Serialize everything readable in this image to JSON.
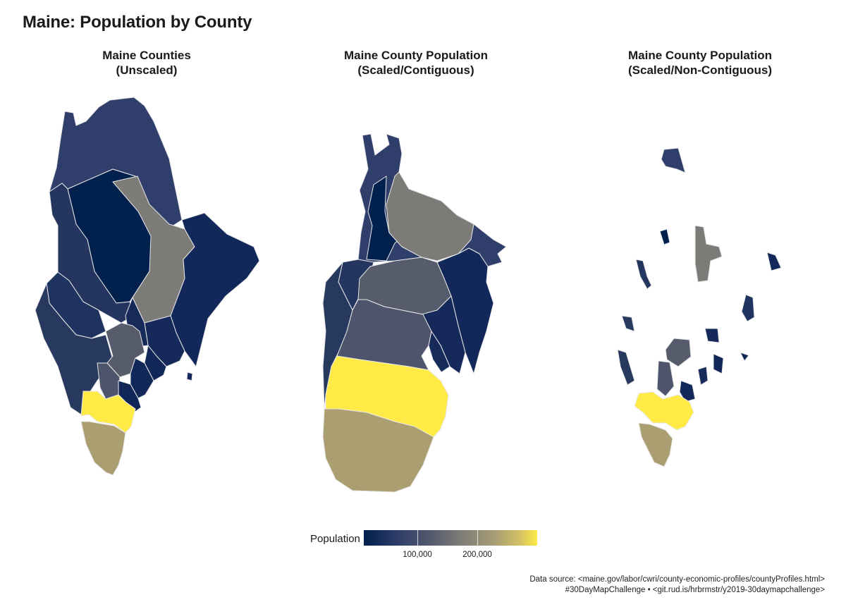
{
  "title": "Maine: Population by County",
  "panels": [
    {
      "line1": "Maine Counties",
      "line2": "(Unscaled)"
    },
    {
      "line1": "Maine County Population",
      "line2": "(Scaled/Contiguous)"
    },
    {
      "line1": "Maine County Population",
      "line2": "(Scaled/Non-Contiguous)"
    }
  ],
  "legend": {
    "title": "Population",
    "ticks": [
      "100,000",
      "200,000"
    ],
    "colors": {
      "low": "#00204d",
      "mid": "#7c7b78",
      "high": "#ffea46"
    }
  },
  "caption": {
    "line1": "Data source: <maine.gov/labor/cwri/county-economic-profiles/countyProfiles.html>",
    "line2": "#30DayMapChallenge • <git.rud.is/hrbrmstr/y2019-30daymapchallenge>"
  },
  "palette": {
    "aroostook": "#2f3e6a",
    "piscataquis": "#00204d",
    "penobscot": "#7c7b78",
    "washington": "#13285a",
    "franklin": "#1f3360",
    "somerset": "#24365f",
    "oxford": "#28395f",
    "hancock": "#15295a",
    "waldo": "#172b5b",
    "kennebec": "#575c6d",
    "androscoggin": "#4d546b",
    "knox": "#102757",
    "lincoln": "#122858",
    "sagadahoc": "#0f2656",
    "cumberland": "#ffea46",
    "york": "#ab9f72"
  }
}
